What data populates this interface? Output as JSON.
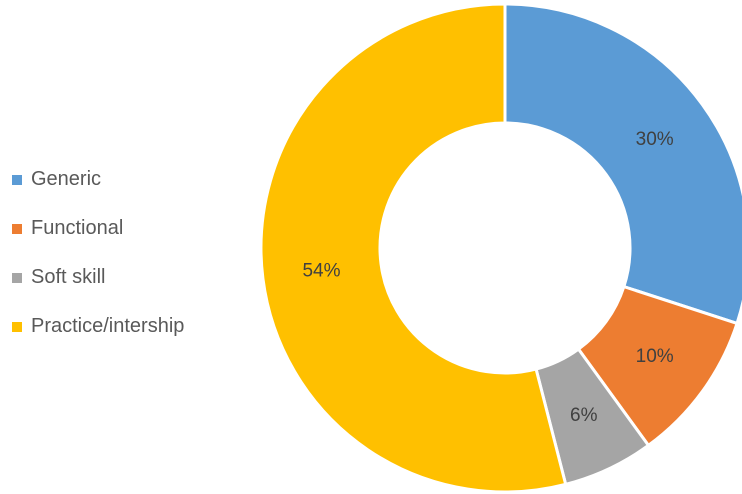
{
  "chart_data": {
    "type": "pie",
    "variant": "doughnut",
    "title": "",
    "categories": [
      "Generic",
      "Functional",
      "Soft skill",
      "Practice/intership"
    ],
    "values": [
      30,
      10,
      6,
      54
    ],
    "labels": [
      "30%",
      "10%",
      "6%",
      "54%"
    ],
    "colors": [
      "#5b9bd5",
      "#ed7d31",
      "#a5a5a5",
      "#ffc000"
    ],
    "legend_position": "left",
    "start_angle_deg": 0,
    "direction": "clockwise"
  }
}
